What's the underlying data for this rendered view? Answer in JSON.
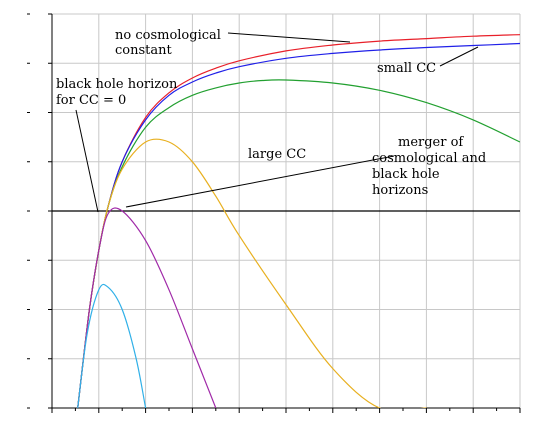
{
  "chart_data": {
    "type": "line",
    "title": "",
    "xlabel": "",
    "ylabel": "",
    "xlim": [
      0,
      10
    ],
    "ylim": [
      -4,
      4
    ],
    "grid": true,
    "series": [
      {
        "color": "#e8202a",
        "x": [
          0.55,
          0.8,
          1.0,
          1.2,
          1.5,
          2.0,
          2.5,
          3,
          3.5,
          4,
          5,
          6,
          7,
          8,
          9,
          10
        ],
        "y": [
          -4,
          -2.0,
          -0.8,
          0.1,
          1.0,
          1.9,
          2.4,
          2.7,
          2.9,
          3.05,
          3.25,
          3.37,
          3.45,
          3.5,
          3.55,
          3.58
        ]
      },
      {
        "color": "#2020e8",
        "x": [
          0.55,
          0.8,
          1.0,
          1.2,
          1.5,
          2.0,
          2.5,
          3,
          3.5,
          4,
          5,
          6,
          7,
          8,
          9,
          10
        ],
        "y": [
          -4,
          -2.0,
          -0.8,
          0.1,
          1.0,
          1.85,
          2.35,
          2.62,
          2.8,
          2.93,
          3.1,
          3.2,
          3.27,
          3.32,
          3.36,
          3.4
        ]
      },
      {
        "color": "#22a030",
        "x": [
          0.55,
          0.8,
          1.0,
          1.2,
          1.5,
          2.0,
          2.5,
          3,
          3.5,
          4,
          4.5,
          5,
          6,
          7,
          8,
          9,
          10
        ],
        "y": [
          -4,
          -2.0,
          -0.8,
          0.1,
          0.9,
          1.7,
          2.1,
          2.35,
          2.5,
          2.6,
          2.65,
          2.66,
          2.6,
          2.45,
          2.2,
          1.85,
          1.4
        ]
      },
      {
        "color": "#e8b020",
        "x": [
          0.55,
          0.8,
          1.0,
          1.2,
          1.5,
          2.0,
          2.5,
          3,
          3.5,
          4,
          5,
          6,
          7,
          8
        ],
        "y": [
          -4,
          -2.0,
          -0.8,
          0.1,
          0.85,
          1.4,
          1.4,
          1.0,
          0.3,
          -0.5,
          -1.9,
          -3.2,
          -4,
          -4
        ]
      },
      {
        "color": "#a02aa8",
        "x": [
          0.55,
          0.8,
          1.0,
          1.2,
          1.5,
          2.0,
          2.5,
          3,
          3.5
        ],
        "y": [
          -4,
          -2.0,
          -0.8,
          -0.05,
          0.0,
          -0.6,
          -1.6,
          -2.8,
          -4
        ]
      },
      {
        "color": "#30b0e8",
        "x": [
          0.55,
          0.75,
          1.0,
          1.2,
          1.5,
          1.8,
          2.0
        ],
        "y": [
          -4,
          -2.5,
          -1.6,
          -1.55,
          -2.0,
          -3.0,
          -4
        ]
      }
    ],
    "annotations": [
      {
        "lines": [
          "no cosmological",
          "constant"
        ]
      },
      {
        "lines": [
          "small CC"
        ]
      },
      {
        "lines": [
          "black hole horizon",
          "for CC = 0"
        ]
      },
      {
        "lines": [
          "large CC"
        ]
      },
      {
        "lines": [
          "merger of",
          "cosmological and",
          "black hole",
          "horizons"
        ]
      }
    ]
  }
}
